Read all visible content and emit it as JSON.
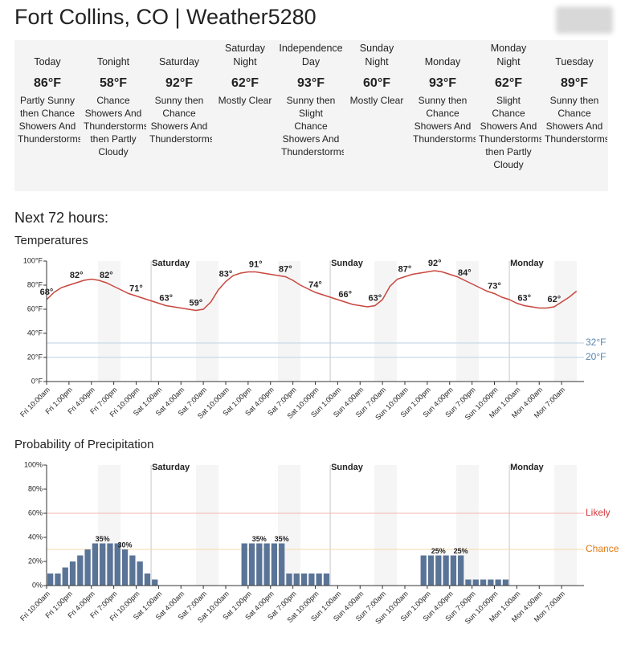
{
  "header": {
    "title": "Fort Collins, CO | Weather5280"
  },
  "forecast": [
    {
      "name": "Today",
      "temp": "86°F",
      "text": "Partly Sunny then Chance Showers And Thunderstorms"
    },
    {
      "name": "Tonight",
      "temp": "58°F",
      "text": "Chance Showers And Thunderstorms then Partly Cloudy"
    },
    {
      "name": "Saturday",
      "temp": "92°F",
      "text": "Sunny then Chance Showers And Thunderstorms"
    },
    {
      "name": "Saturday Night",
      "temp": "62°F",
      "text": "Mostly Clear"
    },
    {
      "name": "Independence Day",
      "temp": "93°F",
      "text": "Sunny then Slight Chance Showers And Thunderstorms"
    },
    {
      "name": "Sunday Night",
      "temp": "60°F",
      "text": "Mostly Clear"
    },
    {
      "name": "Monday",
      "temp": "93°F",
      "text": "Sunny then Chance Showers And Thunderstorms"
    },
    {
      "name": "Monday Night",
      "temp": "62°F",
      "text": "Slight Chance Showers And Thunderstorms then Partly Cloudy"
    },
    {
      "name": "Tuesday",
      "temp": "89°F",
      "text": "Sunny then Chance Showers And Thunderstorms"
    }
  ],
  "section": "Next 72 hours:",
  "chart_data": [
    {
      "type": "line",
      "title": "Temperatures",
      "color": "#c8473f",
      "categories": [
        "Fri 10:00am",
        null,
        null,
        "Fri 1:00pm",
        null,
        null,
        "Fri 4:00pm",
        null,
        null,
        "Fri 7:00pm",
        null,
        null,
        "Fri 10:00pm",
        null,
        null,
        "Sat 1:00am",
        null,
        null,
        "Sat 4:00am",
        null,
        null,
        "Sat 7:00am",
        null,
        null,
        "Sat 10:00am",
        null,
        null,
        "Sat 1:00pm",
        null,
        null,
        "Sat 4:00pm",
        null,
        null,
        "Sat 7:00pm",
        null,
        null,
        "Sat 10:00pm",
        null,
        null,
        "Sun 1:00am",
        null,
        null,
        "Sun 4:00am",
        null,
        null,
        "Sun 7:00am",
        null,
        null,
        "Sun 10:00am",
        null,
        null,
        "Sun 1:00pm",
        null,
        null,
        "Sun 4:00pm",
        null,
        null,
        "Sun 7:00pm",
        null,
        null,
        "Sun 10:00pm",
        null,
        null,
        "Mon 1:00am",
        null,
        null,
        "Mon 4:00am",
        null,
        null,
        "Mon 7:00am",
        null,
        null
      ],
      "values": [
        68,
        74,
        78,
        80,
        82,
        84,
        85,
        84,
        82,
        79,
        76,
        73,
        71,
        69,
        67,
        65,
        63,
        62,
        61,
        60,
        59,
        60,
        66,
        76,
        83,
        88,
        90,
        91,
        91,
        90,
        89,
        88,
        87,
        84,
        80,
        77,
        74,
        72,
        70,
        68,
        66,
        64,
        63,
        62,
        63,
        68,
        79,
        85,
        87,
        89,
        90,
        91,
        92,
        91,
        89,
        87,
        84,
        81,
        78,
        75,
        73,
        70,
        68,
        65,
        63,
        62,
        61,
        61,
        62,
        66,
        70,
        75
      ],
      "value_labels": [
        "68°",
        null,
        null,
        null,
        "82°",
        null,
        null,
        null,
        "82°",
        null,
        null,
        null,
        "71°",
        null,
        null,
        null,
        "63°",
        null,
        null,
        null,
        "59°",
        null,
        null,
        null,
        "83°",
        null,
        null,
        null,
        "91°",
        null,
        null,
        null,
        "87°",
        null,
        null,
        null,
        "74°",
        null,
        null,
        null,
        "66°",
        null,
        null,
        null,
        "63°",
        null,
        null,
        null,
        "87°",
        null,
        null,
        null,
        "92°",
        null,
        null,
        null,
        "84°",
        null,
        null,
        null,
        "73°",
        null,
        null,
        null,
        "63°",
        null,
        null,
        null,
        "62°",
        null,
        null,
        null
      ],
      "ylim": [
        0,
        100
      ],
      "yticks": [
        {
          "value": 0,
          "label": "0°F"
        },
        {
          "value": 20,
          "label": "20°F"
        },
        {
          "value": 40,
          "label": "40°F"
        },
        {
          "value": 60,
          "label": "60°F"
        },
        {
          "value": 80,
          "label": "80°F"
        },
        {
          "value": 100,
          "label": "100°F"
        }
      ],
      "grid": false,
      "reference_lines": [
        {
          "value": 32,
          "label": "32°F",
          "color": "#bcd2e4",
          "text_color": "#5a86b0"
        },
        {
          "value": 20,
          "label": "20°F",
          "color": "#bcd2e4",
          "text_color": "#5a86b0"
        }
      ],
      "day_markers": [
        {
          "index": 14,
          "label": "Saturday"
        },
        {
          "index": 38,
          "label": "Sunday"
        },
        {
          "index": 62,
          "label": "Monday"
        }
      ]
    },
    {
      "type": "bar",
      "title": "Probability of Precipitation",
      "color": "#5a7497",
      "categories": [
        "Fri 10:00am",
        null,
        null,
        "Fri 1:00pm",
        null,
        null,
        "Fri 4:00pm",
        null,
        null,
        "Fri 7:00pm",
        null,
        null,
        "Fri 10:00pm",
        null,
        null,
        "Sat 1:00am",
        null,
        null,
        "Sat 4:00am",
        null,
        null,
        "Sat 7:00am",
        null,
        null,
        "Sat 10:00am",
        null,
        null,
        "Sat 1:00pm",
        null,
        null,
        "Sat 4:00pm",
        null,
        null,
        "Sat 7:00pm",
        null,
        null,
        "Sat 10:00pm",
        null,
        null,
        "Sun 1:00am",
        null,
        null,
        "Sun 4:00am",
        null,
        null,
        "Sun 7:00am",
        null,
        null,
        "Sun 10:00am",
        null,
        null,
        "Sun 1:00pm",
        null,
        null,
        "Sun 4:00pm",
        null,
        null,
        "Sun 7:00pm",
        null,
        null,
        "Sun 10:00pm",
        null,
        null,
        "Mon 1:00am",
        null,
        null,
        "Mon 4:00am",
        null,
        null,
        "Mon 7:00am",
        null,
        null
      ],
      "values": [
        10,
        10,
        15,
        20,
        25,
        30,
        35,
        35,
        35,
        35,
        30,
        25,
        20,
        10,
        5,
        0,
        0,
        0,
        0,
        0,
        0,
        0,
        0,
        0,
        0,
        0,
        35,
        35,
        35,
        35,
        35,
        35,
        10,
        10,
        10,
        10,
        10,
        10,
        0,
        0,
        0,
        0,
        0,
        0,
        0,
        0,
        0,
        0,
        0,
        0,
        25,
        25,
        25,
        25,
        25,
        25,
        5,
        5,
        5,
        5,
        5,
        5,
        0,
        0,
        0,
        0,
        0,
        0,
        0,
        0,
        0,
        0
      ],
      "value_labels": [
        null,
        null,
        null,
        null,
        null,
        null,
        null,
        "35%",
        null,
        null,
        "30%",
        null,
        null,
        null,
        null,
        null,
        null,
        null,
        null,
        null,
        null,
        null,
        null,
        null,
        null,
        null,
        null,
        null,
        "35%",
        null,
        null,
        "35%",
        null,
        null,
        null,
        null,
        null,
        null,
        null,
        null,
        null,
        null,
        null,
        null,
        null,
        null,
        null,
        null,
        null,
        null,
        null,
        null,
        "25%",
        null,
        null,
        "25%",
        null,
        null,
        null,
        null,
        null,
        null,
        null,
        null,
        null,
        null,
        null,
        null,
        null,
        null,
        null,
        null
      ],
      "ylim": [
        0,
        100
      ],
      "yticks": [
        {
          "value": 0,
          "label": "0%"
        },
        {
          "value": 20,
          "label": "20%"
        },
        {
          "value": 40,
          "label": "40%"
        },
        {
          "value": 60,
          "label": "60%"
        },
        {
          "value": 80,
          "label": "80%"
        },
        {
          "value": 100,
          "label": "100%"
        }
      ],
      "grid": false,
      "reference_lines": [
        {
          "value": 60,
          "label": "Likely",
          "color": "#f3b6b6",
          "text_color": "#d63a3c"
        },
        {
          "value": 30,
          "label": "Chance",
          "color": "#f7dba6",
          "text_color": "#e07a16"
        }
      ],
      "day_markers": [
        {
          "index": 14,
          "label": "Saturday"
        },
        {
          "index": 38,
          "label": "Sunday"
        },
        {
          "index": 62,
          "label": "Monday"
        }
      ]
    }
  ]
}
